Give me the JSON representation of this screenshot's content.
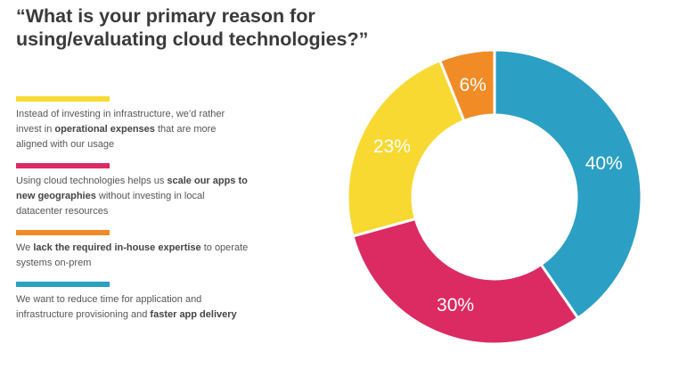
{
  "title": "“What is your primary reason for using/evaluating cloud technologies?”",
  "colors": {
    "yellow": "#f8d932",
    "pink": "#dc2a63",
    "orange": "#f18b26",
    "blue": "#2c9fc4"
  },
  "legend": [
    {
      "color": "#f8d932",
      "segments": [
        {
          "text": "Instead of investing in infrastructure, we’d rather invest in ",
          "bold": false
        },
        {
          "text": "operational expenses",
          "bold": true
        },
        {
          "text": " that are more aligned with our usage",
          "bold": false
        }
      ]
    },
    {
      "color": "#dc2a63",
      "segments": [
        {
          "text": "Using cloud technologies helps us ",
          "bold": false
        },
        {
          "text": "scale our apps to new geographies",
          "bold": true
        },
        {
          "text": " without investing in local datacenter resources",
          "bold": false
        }
      ]
    },
    {
      "color": "#f18b26",
      "segments": [
        {
          "text": "We ",
          "bold": false
        },
        {
          "text": "lack the required in-house expertise",
          "bold": true
        },
        {
          "text": " to operate systems on-prem",
          "bold": false
        }
      ]
    },
    {
      "color": "#2c9fc4",
      "segments": [
        {
          "text": "We want to reduce time for application and infrastructure provisioning and ",
          "bold": false
        },
        {
          "text": "faster app delivery",
          "bold": true
        }
      ]
    }
  ],
  "chart_data": {
    "type": "pie",
    "style": "donut",
    "title": "“What is your primary reason for using/evaluating cloud technologies?”",
    "slices": [
      {
        "label": "40%",
        "value": 40,
        "color": "#2c9fc4",
        "category": "We want to reduce time for application and infrastructure provisioning and faster app delivery"
      },
      {
        "label": "30%",
        "value": 30,
        "color": "#dc2a63",
        "category": "Using cloud technologies helps us scale our apps to new geographies without investing in local datacenter resources"
      },
      {
        "label": "23%",
        "value": 23,
        "color": "#f8d932",
        "category": "Instead of investing in infrastructure, we’d rather invest in operational expenses that are more aligned with our usage"
      },
      {
        "label": "6%",
        "value": 6,
        "color": "#f18b26",
        "category": "We lack the required in-house expertise to operate systems on-prem"
      }
    ],
    "start_angle_deg": 0,
    "direction": "clockwise"
  }
}
